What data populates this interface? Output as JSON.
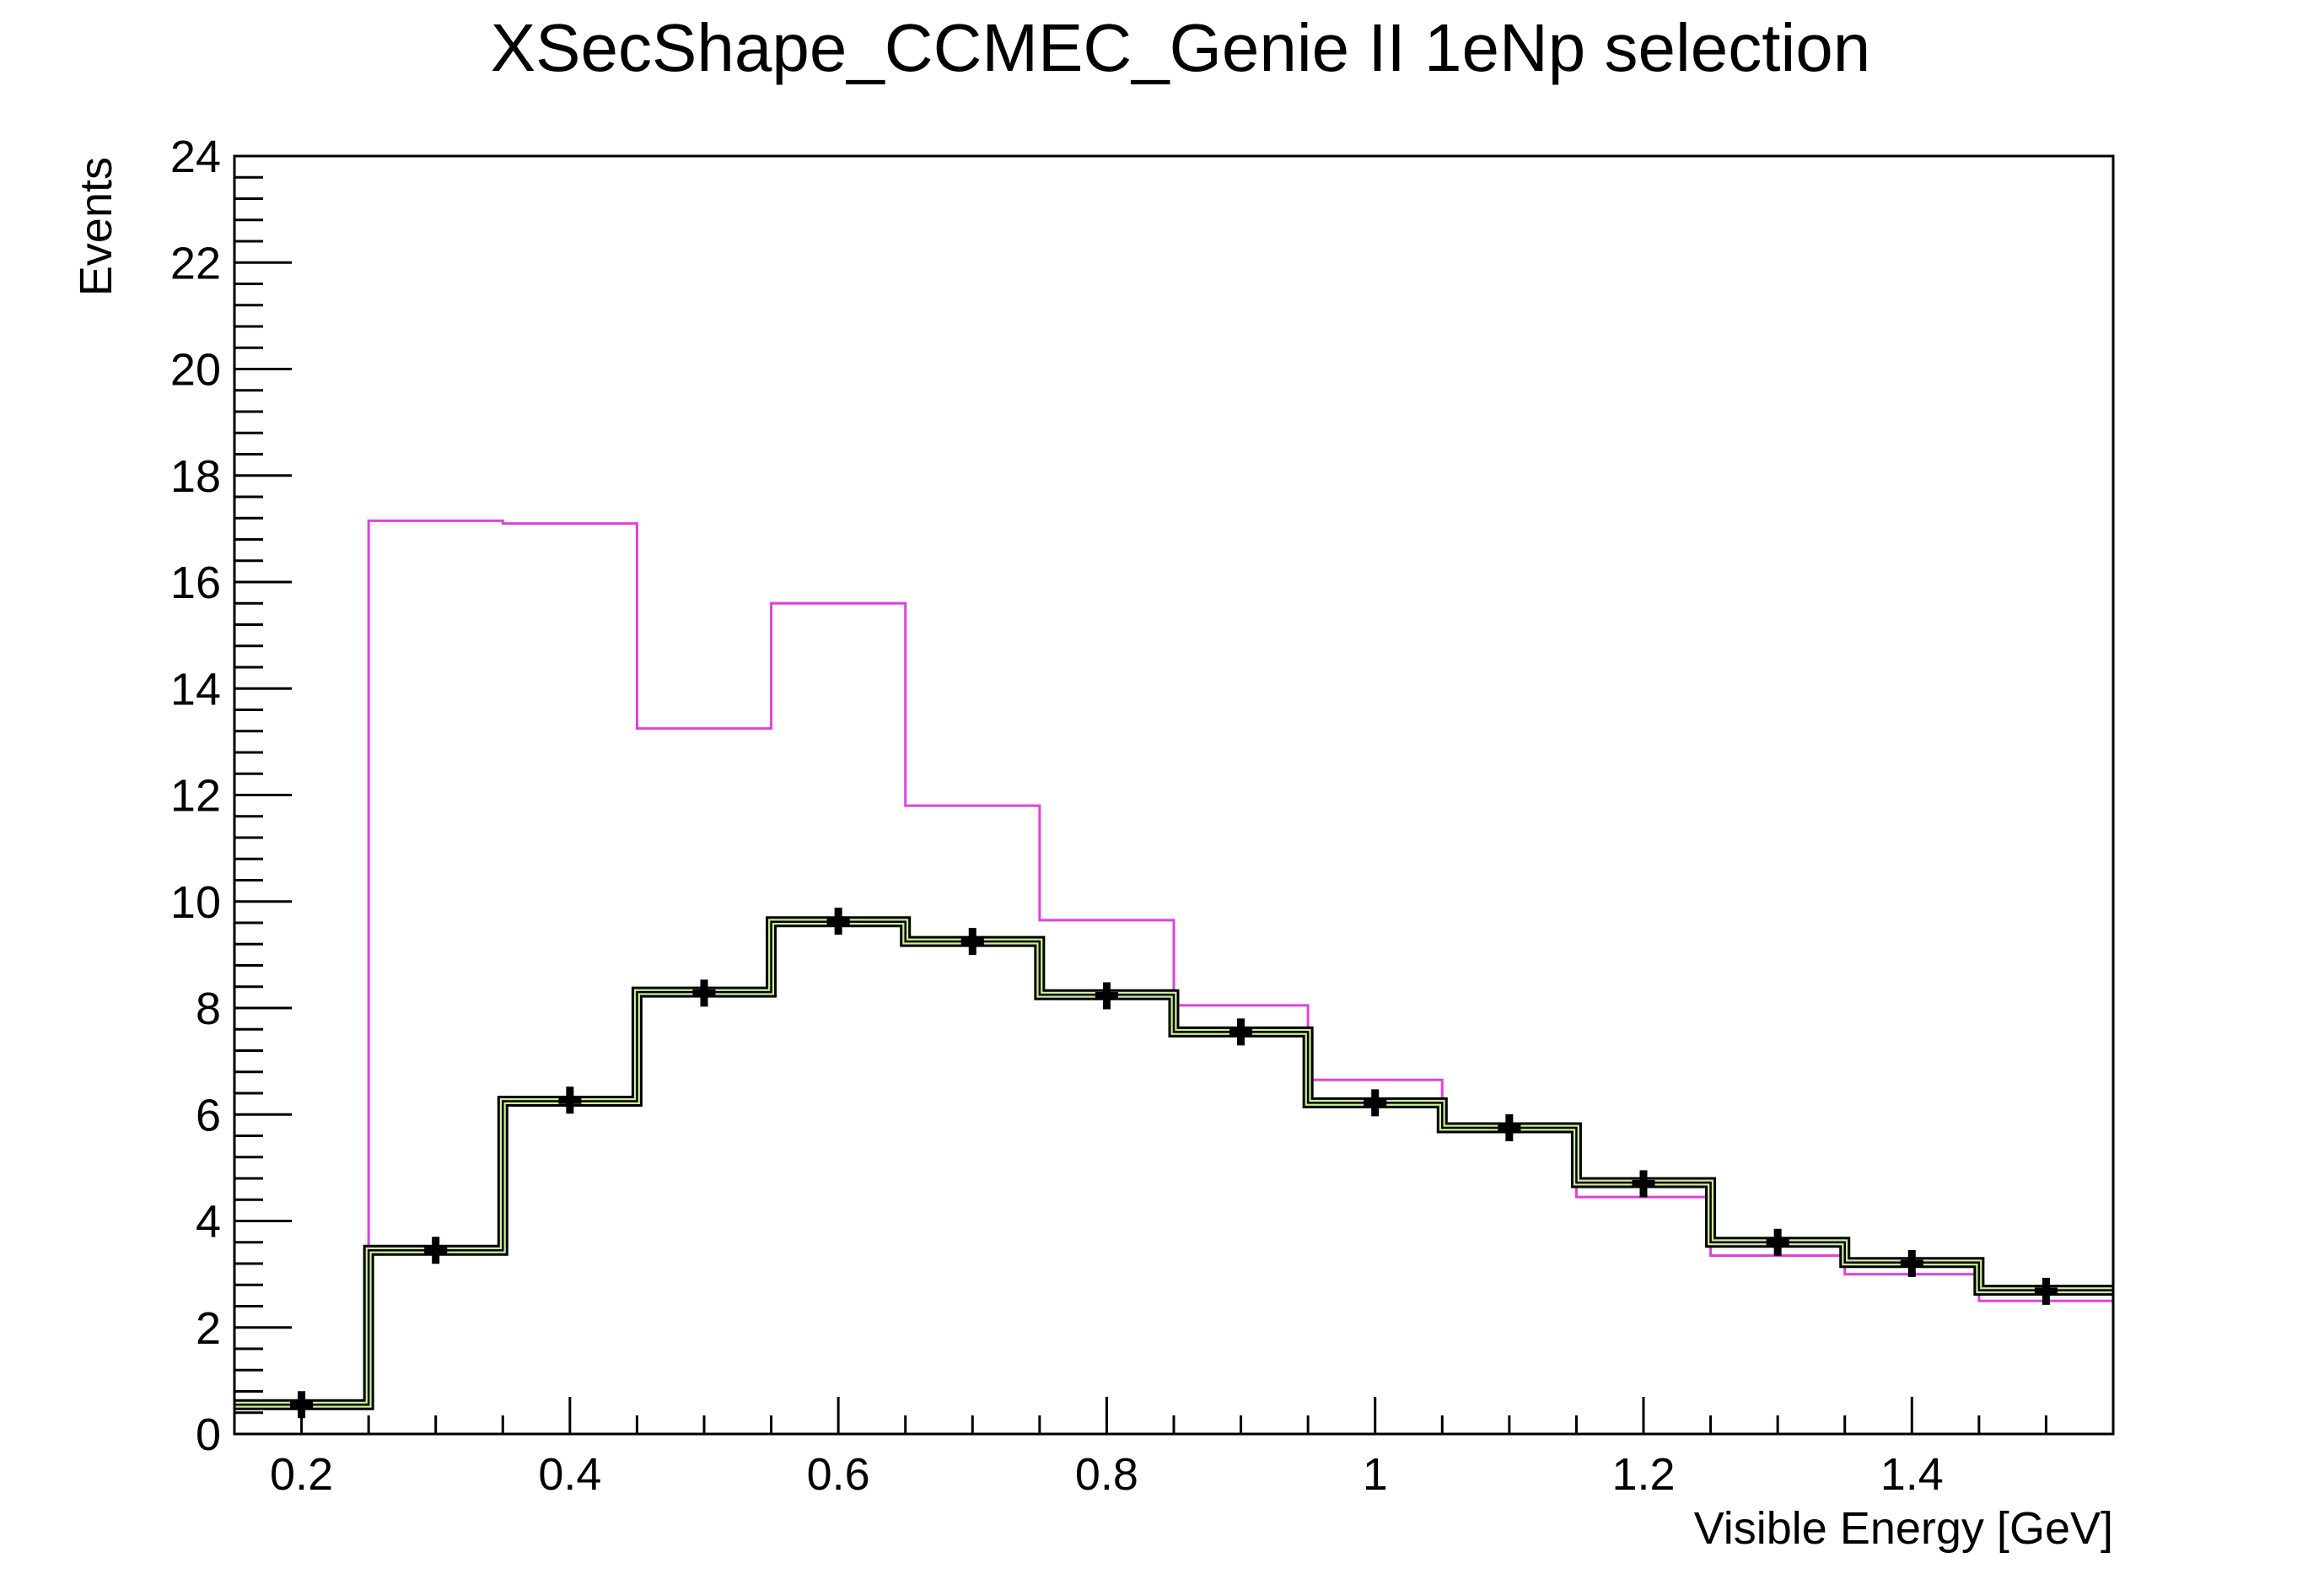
{
  "chart_data": {
    "type": "histogram",
    "title": "XSecShape_CCMEC_Genie II 1eNp selection",
    "xlabel": "Visible Energy [GeV]",
    "ylabel": "Events",
    "xlim": [
      0.15,
      1.55
    ],
    "ylim": [
      0,
      24
    ],
    "x_ticks": [
      "0.2",
      "0.4",
      "0.6",
      "0.8",
      "1",
      "1.2",
      "1.4"
    ],
    "x_tick_values": [
      0.2,
      0.4,
      0.6,
      0.8,
      1.0,
      1.2,
      1.4
    ],
    "y_ticks": [
      "0",
      "2",
      "4",
      "6",
      "8",
      "10",
      "12",
      "14",
      "16",
      "18",
      "20",
      "22",
      "24"
    ],
    "y_tick_values": [
      0,
      2,
      4,
      6,
      8,
      10,
      12,
      14,
      16,
      18,
      20,
      22,
      24
    ],
    "bin_edges": [
      0.15,
      0.25,
      0.35,
      0.45,
      0.55,
      0.65,
      0.75,
      0.85,
      0.95,
      1.05,
      1.15,
      1.25,
      1.35,
      1.45,
      1.55
    ],
    "bin_centers": [
      0.2,
      0.3,
      0.4,
      0.5,
      0.6,
      0.7,
      0.8,
      0.9,
      1.0,
      1.1,
      1.2,
      1.3,
      1.4,
      1.5
    ],
    "series": [
      {
        "style": "step",
        "color": "#e040e0",
        "values": [
          0.55,
          17.15,
          17.1,
          13.25,
          15.6,
          11.8,
          9.65,
          8.05,
          6.65,
          5.8,
          4.45,
          3.35,
          3.0,
          2.5
        ]
      },
      {
        "style": "step-band",
        "color": "#000000",
        "band_color": "#ccee99",
        "values": [
          0.55,
          3.45,
          6.25,
          8.3,
          9.62,
          9.25,
          8.25,
          7.55,
          6.22,
          5.75,
          4.72,
          3.6,
          3.22,
          2.7
        ]
      },
      {
        "style": "points",
        "color": "#000000",
        "values": [
          0.55,
          3.45,
          6.27,
          8.28,
          9.63,
          9.25,
          8.23,
          7.55,
          6.22,
          5.75,
          4.7,
          3.6,
          3.2,
          2.68
        ],
        "yerr": [
          0.15,
          0.2,
          0.18,
          0.18,
          0.2,
          0.18,
          0.18,
          0.18,
          0.18,
          0.18,
          0.18,
          0.18,
          0.18,
          0.18
        ]
      }
    ],
    "grid": false,
    "legend": "none"
  }
}
